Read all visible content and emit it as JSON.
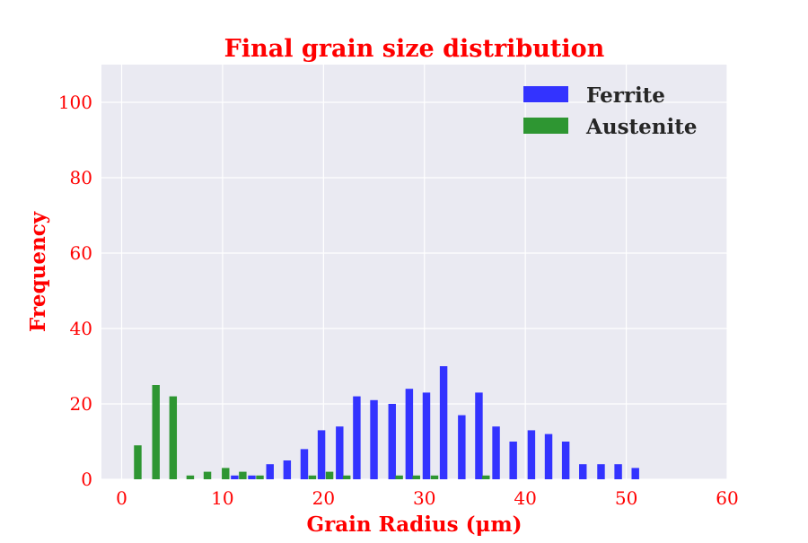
{
  "chart_data": {
    "type": "bar",
    "title": "Final grain size distribution",
    "xlabel": "Grain Radius (μm)",
    "ylabel": "Frequency",
    "xlim": [
      -2,
      60
    ],
    "ylim": [
      0,
      110
    ],
    "xticks": [
      0,
      10,
      20,
      30,
      40,
      50,
      60
    ],
    "yticks": [
      0,
      20,
      40,
      60,
      80,
      100
    ],
    "grid": true,
    "legend_position": "top-right",
    "bar_width": 0.75,
    "series": [
      {
        "name": "Ferrite",
        "color": "#3333ff",
        "x": [
          11.2,
          12.9,
          14.7,
          16.4,
          18.1,
          19.8,
          21.6,
          23.3,
          25.0,
          26.8,
          28.5,
          30.2,
          31.9,
          33.7,
          35.4,
          37.1,
          38.8,
          40.6,
          42.3,
          44.0,
          45.7,
          47.5,
          49.2,
          50.9
        ],
        "values": [
          1,
          1,
          4,
          5,
          8,
          13,
          14,
          22,
          21,
          20,
          24,
          23,
          30,
          17,
          23,
          14,
          10,
          13,
          12,
          10,
          4,
          4,
          4,
          3
        ]
      },
      {
        "name": "Austenite",
        "color": "#2e9632",
        "x": [
          1.6,
          3.4,
          5.1,
          6.8,
          8.5,
          10.3,
          12.0,
          13.7,
          15.4,
          17.2,
          18.9,
          20.6,
          22.3,
          24.1,
          25.8,
          27.5,
          29.2,
          31.0,
          32.7,
          34.4,
          36.1
        ],
        "values": [
          9,
          25,
          22,
          1,
          2,
          3,
          2,
          1,
          0,
          0,
          1,
          2,
          1,
          0,
          0,
          1,
          1,
          1,
          0,
          0,
          1
        ]
      }
    ]
  }
}
